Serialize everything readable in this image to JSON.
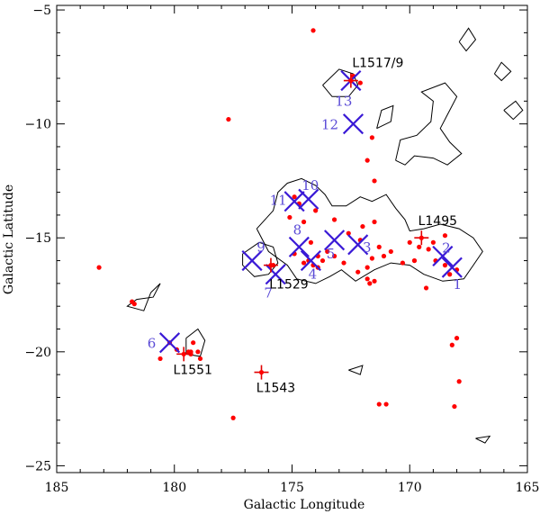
{
  "chart_data": {
    "type": "scatter",
    "xlabel": "Galactic Longitude",
    "ylabel": "Galactic Latitude",
    "xlim": [
      185,
      165
    ],
    "ylim": [
      -25.3,
      -4.8
    ],
    "x_ticks": [
      185,
      180,
      175,
      170,
      165
    ],
    "y_ticks": [
      -5,
      -10,
      -15,
      -20,
      -25
    ],
    "x_tick_labels": [
      "185",
      "180",
      "175",
      "170",
      "165"
    ],
    "y_tick_labels": [
      "−5",
      "−10",
      "−15",
      "−20",
      "−25"
    ],
    "series": [
      {
        "marker": "dot",
        "color": "#ff0000",
        "points": [
          [
            174.1,
            -5.9
          ],
          [
            177.7,
            -9.8
          ],
          [
            172.4,
            -7.9
          ],
          [
            172.1,
            -8.2
          ],
          [
            171.6,
            -10.6
          ],
          [
            171.8,
            -11.6
          ],
          [
            171.5,
            -12.5
          ],
          [
            174.9,
            -13.2
          ],
          [
            174.7,
            -13.5
          ],
          [
            174.0,
            -13.8
          ],
          [
            175.1,
            -14.1
          ],
          [
            174.5,
            -14.3
          ],
          [
            173.2,
            -14.2
          ],
          [
            172.0,
            -14.5
          ],
          [
            171.5,
            -14.3
          ],
          [
            172.6,
            -14.8
          ],
          [
            172.1,
            -15.1
          ],
          [
            171.3,
            -15.4
          ],
          [
            170.0,
            -15.2
          ],
          [
            169.6,
            -15.4
          ],
          [
            169.2,
            -15.5
          ],
          [
            168.5,
            -14.9
          ],
          [
            169.0,
            -15.2
          ],
          [
            169.8,
            -16.0
          ],
          [
            170.8,
            -15.6
          ],
          [
            171.1,
            -15.8
          ],
          [
            171.6,
            -15.9
          ],
          [
            171.8,
            -16.3
          ],
          [
            172.8,
            -16.1
          ],
          [
            173.2,
            -15.8
          ],
          [
            173.5,
            -15.6
          ],
          [
            174.2,
            -15.2
          ],
          [
            173.9,
            -15.8
          ],
          [
            174.5,
            -16.1
          ],
          [
            174.3,
            -16.0
          ],
          [
            173.9,
            -16.3
          ],
          [
            173.7,
            -16.0
          ],
          [
            174.1,
            -16.2
          ],
          [
            175.8,
            -16.2
          ],
          [
            174.9,
            -15.7
          ],
          [
            171.8,
            -16.8
          ],
          [
            172.2,
            -16.5
          ],
          [
            171.7,
            -17.0
          ],
          [
            171.5,
            -16.9
          ],
          [
            169.3,
            -17.2
          ],
          [
            168.5,
            -16.2
          ],
          [
            168.0,
            -16.4
          ],
          [
            169.8,
            -16.0
          ],
          [
            170.3,
            -16.1
          ],
          [
            168.9,
            -16.0
          ],
          [
            168.3,
            -16.6
          ],
          [
            180.2,
            -19.6
          ],
          [
            179.9,
            -19.9
          ],
          [
            179.4,
            -20.0
          ],
          [
            179.0,
            -20.0
          ],
          [
            179.2,
            -19.6
          ],
          [
            179.3,
            -20.0
          ],
          [
            178.9,
            -20.3
          ],
          [
            180.6,
            -20.3
          ],
          [
            179.3,
            -20.1
          ],
          [
            183.2,
            -16.3
          ],
          [
            181.8,
            -17.8
          ],
          [
            181.7,
            -17.9
          ],
          [
            177.5,
            -22.9
          ],
          [
            171.3,
            -22.3
          ],
          [
            171.0,
            -22.3
          ],
          [
            168.0,
            -19.4
          ],
          [
            168.2,
            -19.7
          ],
          [
            167.9,
            -21.3
          ],
          [
            168.1,
            -22.4
          ]
        ]
      },
      {
        "marker": "cross",
        "color": "#3a1ad6",
        "points": [
          {
            "x": 168.2,
            "y": -16.3,
            "label": "1"
          },
          {
            "x": 168.6,
            "y": -15.8,
            "label": "2"
          },
          {
            "x": 172.2,
            "y": -15.3,
            "label": "3"
          },
          {
            "x": 174.2,
            "y": -16.0,
            "label": "4"
          },
          {
            "x": 173.2,
            "y": -15.1,
            "label": "5"
          },
          {
            "x": 180.2,
            "y": -19.6,
            "label": "6"
          },
          {
            "x": 175.7,
            "y": -16.6,
            "label": "7"
          },
          {
            "x": 174.7,
            "y": -15.4,
            "label": "8"
          },
          {
            "x": 176.7,
            "y": -16.0,
            "label": "9"
          },
          {
            "x": 174.3,
            "y": -13.3,
            "label": "10"
          },
          {
            "x": 174.9,
            "y": -13.4,
            "label": "11"
          },
          {
            "x": 172.4,
            "y": -10.0,
            "label": "12"
          },
          {
            "x": 172.5,
            "y": -8.1,
            "label": "13"
          }
        ]
      },
      {
        "marker": "plus",
        "color": "#e00000",
        "points": [
          {
            "x": 172.5,
            "y": -8.1,
            "label": "L1517/9"
          },
          {
            "x": 169.5,
            "y": -15.0,
            "label": "L1495"
          },
          {
            "x": 175.9,
            "y": -16.2,
            "label": "L1529"
          },
          {
            "x": 179.6,
            "y": -20.1,
            "label": "L1551"
          },
          {
            "x": 176.3,
            "y": -20.9,
            "label": "L1543"
          }
        ]
      }
    ],
    "contours": [
      [
        [
          176.5,
          -14.6
        ],
        [
          175.8,
          -13.8
        ],
        [
          175.6,
          -13.0
        ],
        [
          175.2,
          -12.6
        ],
        [
          174.6,
          -12.4
        ],
        [
          174.0,
          -12.7
        ],
        [
          173.6,
          -13.1
        ],
        [
          173.3,
          -13.6
        ],
        [
          172.7,
          -13.6
        ],
        [
          172.1,
          -13.2
        ],
        [
          171.6,
          -13.4
        ],
        [
          171.0,
          -13.1
        ],
        [
          170.6,
          -13.7
        ],
        [
          170.2,
          -14.2
        ],
        [
          170.0,
          -14.7
        ],
        [
          169.4,
          -14.6
        ],
        [
          168.7,
          -14.4
        ],
        [
          167.9,
          -14.6
        ],
        [
          167.3,
          -15.0
        ],
        [
          166.9,
          -15.6
        ],
        [
          167.3,
          -16.2
        ],
        [
          167.7,
          -16.8
        ],
        [
          168.6,
          -16.9
        ],
        [
          169.4,
          -16.6
        ],
        [
          170.0,
          -16.2
        ],
        [
          170.8,
          -16.1
        ],
        [
          171.5,
          -16.4
        ],
        [
          172.3,
          -16.9
        ],
        [
          172.9,
          -16.4
        ],
        [
          173.4,
          -16.7
        ],
        [
          174.0,
          -17.0
        ],
        [
          174.8,
          -16.8
        ],
        [
          175.2,
          -16.2
        ],
        [
          176.0,
          -15.6
        ],
        [
          176.5,
          -14.6
        ]
      ],
      [
        [
          177.1,
          -15.7
        ],
        [
          176.4,
          -15.2
        ],
        [
          175.8,
          -15.4
        ],
        [
          175.6,
          -16.1
        ],
        [
          176.0,
          -16.6
        ],
        [
          176.6,
          -16.7
        ],
        [
          177.1,
          -16.2
        ],
        [
          177.1,
          -15.7
        ]
      ],
      [
        [
          170.6,
          -11.6
        ],
        [
          170.4,
          -10.7
        ],
        [
          169.7,
          -10.5
        ],
        [
          169.1,
          -9.9
        ],
        [
          169.0,
          -9.0
        ],
        [
          169.5,
          -8.6
        ],
        [
          168.5,
          -8.2
        ],
        [
          168.0,
          -8.8
        ],
        [
          168.4,
          -9.6
        ],
        [
          168.7,
          -10.2
        ],
        [
          168.3,
          -10.8
        ],
        [
          167.8,
          -11.3
        ],
        [
          168.4,
          -11.8
        ],
        [
          169.0,
          -11.5
        ],
        [
          169.8,
          -11.4
        ],
        [
          170.2,
          -11.8
        ],
        [
          170.6,
          -11.6
        ]
      ],
      [
        [
          171.4,
          -10.2
        ],
        [
          171.2,
          -9.4
        ],
        [
          170.7,
          -9.2
        ],
        [
          170.8,
          -9.9
        ],
        [
          171.4,
          -10.2
        ]
      ],
      [
        [
          173.7,
          -8.3
        ],
        [
          173.0,
          -7.6
        ],
        [
          172.4,
          -7.8
        ],
        [
          172.2,
          -8.3
        ],
        [
          172.6,
          -8.8
        ],
        [
          173.3,
          -8.8
        ],
        [
          173.7,
          -8.3
        ]
      ],
      [
        [
          181.0,
          -17.4
        ],
        [
          180.6,
          -17.0
        ],
        [
          180.9,
          -17.6
        ],
        [
          181.6,
          -17.7
        ],
        [
          182.0,
          -18.0
        ],
        [
          181.3,
          -18.2
        ],
        [
          181.0,
          -17.4
        ]
      ],
      [
        [
          179.5,
          -19.4
        ],
        [
          179.0,
          -19.0
        ],
        [
          178.7,
          -19.5
        ],
        [
          178.9,
          -20.2
        ],
        [
          179.5,
          -20.1
        ],
        [
          179.5,
          -19.4
        ]
      ],
      [
        [
          172.6,
          -20.8
        ],
        [
          172.0,
          -20.6
        ],
        [
          172.1,
          -21.0
        ],
        [
          172.6,
          -20.8
        ]
      ],
      [
        [
          167.9,
          -6.4
        ],
        [
          167.5,
          -5.8
        ],
        [
          167.2,
          -6.3
        ],
        [
          167.6,
          -6.8
        ],
        [
          167.9,
          -6.4
        ]
      ],
      [
        [
          166.4,
          -7.8
        ],
        [
          166.1,
          -7.3
        ],
        [
          165.7,
          -7.7
        ],
        [
          166.1,
          -8.1
        ],
        [
          166.4,
          -7.8
        ]
      ],
      [
        [
          166.0,
          -9.4
        ],
        [
          165.5,
          -9.0
        ],
        [
          165.2,
          -9.4
        ],
        [
          165.6,
          -9.8
        ],
        [
          166.0,
          -9.4
        ]
      ],
      [
        [
          167.2,
          -23.8
        ],
        [
          166.6,
          -23.7
        ],
        [
          166.8,
          -24.0
        ],
        [
          167.2,
          -23.8
        ]
      ]
    ]
  }
}
